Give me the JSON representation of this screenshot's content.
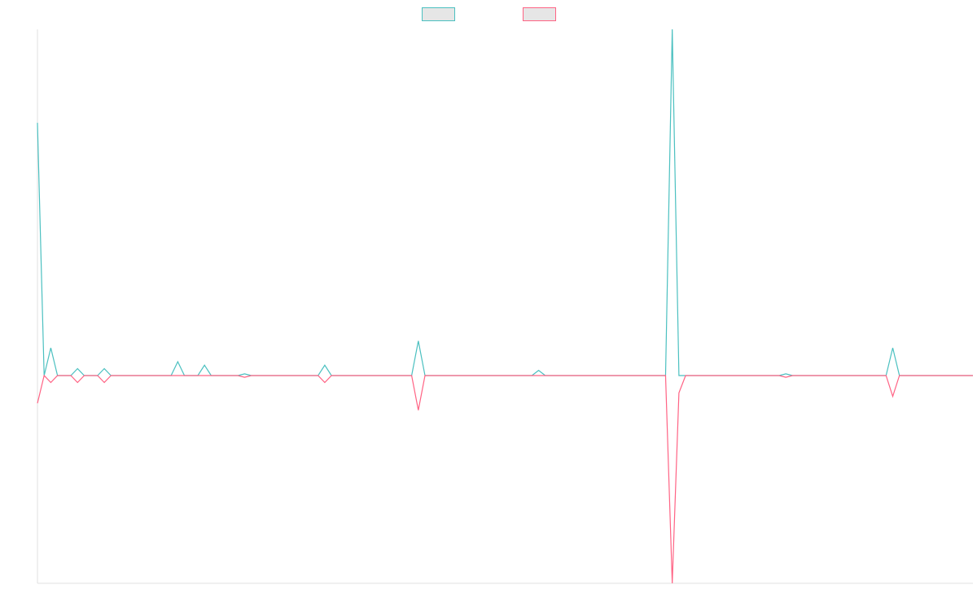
{
  "chart_data": {
    "type": "line",
    "legend": "top",
    "categories": [
      null,
      null,
      null,
      null,
      null,
      null,
      null,
      null,
      null,
      null,
      null,
      null,
      null,
      null,
      null,
      null,
      null,
      null,
      null,
      null,
      null,
      null,
      null,
      null,
      null,
      null,
      null,
      null,
      null,
      null,
      null,
      null,
      null,
      null,
      null,
      null,
      null,
      null,
      null,
      null,
      null,
      null,
      null,
      null,
      null,
      null,
      null,
      null,
      null,
      null,
      null,
      null,
      null,
      null,
      null,
      null,
      null,
      null,
      null,
      null,
      null,
      null,
      null,
      null,
      null,
      null,
      null,
      null,
      null,
      null,
      null,
      null,
      null,
      null,
      null,
      null,
      null,
      null,
      null,
      null,
      null,
      null,
      null,
      null,
      null,
      null,
      null,
      null,
      null,
      null,
      null,
      null,
      null,
      null,
      null,
      null,
      null,
      null,
      null,
      null,
      null,
      null,
      null,
      null,
      null,
      null,
      null,
      null,
      null,
      null,
      null,
      null,
      null,
      null,
      null,
      null,
      null,
      null,
      null,
      null,
      null,
      null,
      null,
      null,
      null,
      null,
      null,
      null,
      null,
      null,
      null,
      null,
      null,
      null,
      null,
      null,
      null,
      null,
      null,
      null,
      null
    ],
    "series": [
      {
        "color": "#4bc0c0",
        "values": [
          73,
          0,
          8,
          0,
          0,
          0,
          2,
          0,
          0,
          0,
          2,
          0,
          0,
          0,
          0,
          0,
          0,
          0,
          0,
          0,
          0,
          4,
          0,
          0,
          0,
          3,
          0,
          0,
          0,
          0,
          0,
          0.5,
          0,
          0,
          0,
          0,
          0,
          0,
          0,
          0,
          0,
          0,
          0,
          3,
          0,
          0,
          0,
          0,
          0,
          0,
          0,
          0,
          0,
          0,
          0,
          0,
          0,
          10,
          0,
          0,
          0,
          0,
          0,
          0,
          0,
          0,
          0,
          0,
          0,
          0,
          0,
          0,
          0,
          0,
          0,
          1.5,
          0,
          0,
          0,
          0,
          0,
          0,
          0,
          0,
          0,
          0,
          0,
          0,
          0,
          0,
          0,
          0,
          0,
          0,
          0,
          100,
          0,
          0,
          0,
          0,
          0,
          0,
          0,
          0,
          0,
          0,
          0,
          0,
          0,
          0,
          0,
          0,
          0.5,
          0,
          0,
          0,
          0,
          0,
          0,
          0,
          0,
          0,
          0,
          0,
          0,
          0,
          0,
          0,
          8,
          0,
          0,
          0,
          0,
          0,
          0,
          0,
          0,
          0,
          0,
          0,
          0
        ]
      },
      {
        "color": "#ff6384",
        "values": [
          -8,
          0,
          -2,
          0,
          0,
          0,
          -2,
          0,
          0,
          0,
          -2,
          0,
          0,
          0,
          0,
          0,
          0,
          0,
          0,
          0,
          0,
          0,
          0,
          0,
          0,
          0,
          0,
          0,
          0,
          0,
          0,
          -0.5,
          0,
          0,
          0,
          0,
          0,
          0,
          0,
          0,
          0,
          0,
          0,
          -2,
          0,
          0,
          0,
          0,
          0,
          0,
          0,
          0,
          0,
          0,
          0,
          0,
          0,
          -10,
          0,
          0,
          0,
          0,
          0,
          0,
          0,
          0,
          0,
          0,
          0,
          0,
          0,
          0,
          0,
          0,
          0,
          0,
          0,
          0,
          0,
          0,
          0,
          0,
          0,
          0,
          0,
          0,
          0,
          0,
          0,
          0,
          0,
          0,
          0,
          0,
          0,
          -60,
          -5,
          0,
          0,
          0,
          0,
          0,
          0,
          0,
          0,
          0,
          0,
          0,
          0,
          0,
          0,
          0,
          -0.5,
          0,
          0,
          0,
          0,
          0,
          0,
          0,
          0,
          0,
          0,
          0,
          0,
          0,
          0,
          0,
          -6,
          0,
          0,
          0,
          0,
          0,
          0,
          0,
          0,
          0,
          0,
          0,
          0
        ]
      }
    ],
    "ylim": [
      -60,
      100
    ]
  }
}
